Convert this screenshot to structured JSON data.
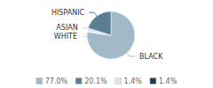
{
  "chart_data": {
    "type": "pie",
    "categories": [
      "BLACK",
      "WHITE",
      "ASIAN",
      "HISPANIC"
    ],
    "values": [
      77.0,
      1.4,
      1.4,
      20.1
    ],
    "colors": [
      "#a2b9c8",
      "#dce8ef",
      "#c8dce6",
      "#5a7f93"
    ],
    "legend": "bottom",
    "legend_entries": [
      {
        "label": "77.0%",
        "color": "#a2b9c8"
      },
      {
        "label": "20.1%",
        "color": "#5a7f93"
      },
      {
        "label": "1.4%",
        "color": "#dce8ef"
      },
      {
        "label": "1.4%",
        "color": "#1e3d4f"
      }
    ]
  }
}
